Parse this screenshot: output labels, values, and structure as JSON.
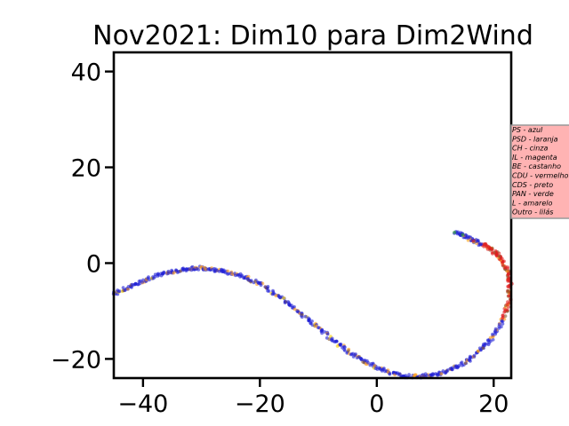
{
  "chart_data": {
    "type": "scatter",
    "title": "Nov2021: Dim10 para Dim2Wind",
    "xlabel": "",
    "ylabel": "",
    "xlim": [
      -45,
      23
    ],
    "ylim": [
      -24,
      44
    ],
    "x_ticks": [
      -40,
      -20,
      0,
      20
    ],
    "x_tick_labels": [
      "−40",
      "−20",
      "0",
      "20"
    ],
    "y_ticks": [
      -20,
      0,
      20,
      40
    ],
    "y_tick_labels": [
      "−20",
      "0",
      "20",
      "40"
    ],
    "grid": false,
    "legend_position": "right",
    "legend_entries": [
      "PS - azul",
      "PSD - laranja",
      "CH - cinza",
      "IL - magenta",
      "BE - castanho",
      "CDU - vermelho",
      "CDS - preto",
      "PAN - verde",
      "L - amarelo",
      "Outro - lilás"
    ],
    "series_colors": {
      "PS": "#1f1fd6",
      "PSD": "#ff9f1c",
      "BE": "#8b5a2b",
      "CDU": "#e01e1e",
      "PAN": "#2ca02c",
      "L": "#f5d000"
    },
    "curve_path": [
      [
        -45,
        -6.5
      ],
      [
        -42,
        -4.8
      ],
      [
        -39,
        -3.2
      ],
      [
        -36,
        -2.0
      ],
      [
        -33,
        -1.4
      ],
      [
        -30.5,
        -1.0
      ],
      [
        -28,
        -1.3
      ],
      [
        -25,
        -2.0
      ],
      [
        -22,
        -3.2
      ],
      [
        -19,
        -5.0
      ],
      [
        -16,
        -7.6
      ],
      [
        -13,
        -10.5
      ],
      [
        -10,
        -13.5
      ],
      [
        -7,
        -16.5
      ],
      [
        -4,
        -19.2
      ],
      [
        -1,
        -21.2
      ],
      [
        2,
        -22.8
      ],
      [
        5,
        -23.6
      ],
      [
        8,
        -23.6
      ],
      [
        11,
        -23.0
      ],
      [
        14,
        -21.5
      ],
      [
        17,
        -19.0
      ],
      [
        19.5,
        -16.0
      ],
      [
        21.5,
        -12.0
      ],
      [
        22.6,
        -8.0
      ],
      [
        22.8,
        -4.0
      ],
      [
        22.2,
        -1.0
      ],
      [
        21.0,
        1.5
      ],
      [
        19.5,
        3.0
      ],
      [
        17.5,
        4.2
      ],
      [
        15.5,
        5.3
      ],
      [
        13.5,
        6.5
      ]
    ],
    "points_per_segment": 22,
    "colored_highlights": [
      {
        "party": "PAN",
        "x": 13.3,
        "y": 6.4
      },
      {
        "party": "PAN",
        "x": 14.7,
        "y": 5.9
      },
      {
        "party": "CDU",
        "x": 16.5,
        "y": 4.6
      },
      {
        "party": "CDU",
        "x": 19.0,
        "y": 2.9
      },
      {
        "party": "CDU",
        "x": 19.8,
        "y": 2.0
      }
    ]
  }
}
